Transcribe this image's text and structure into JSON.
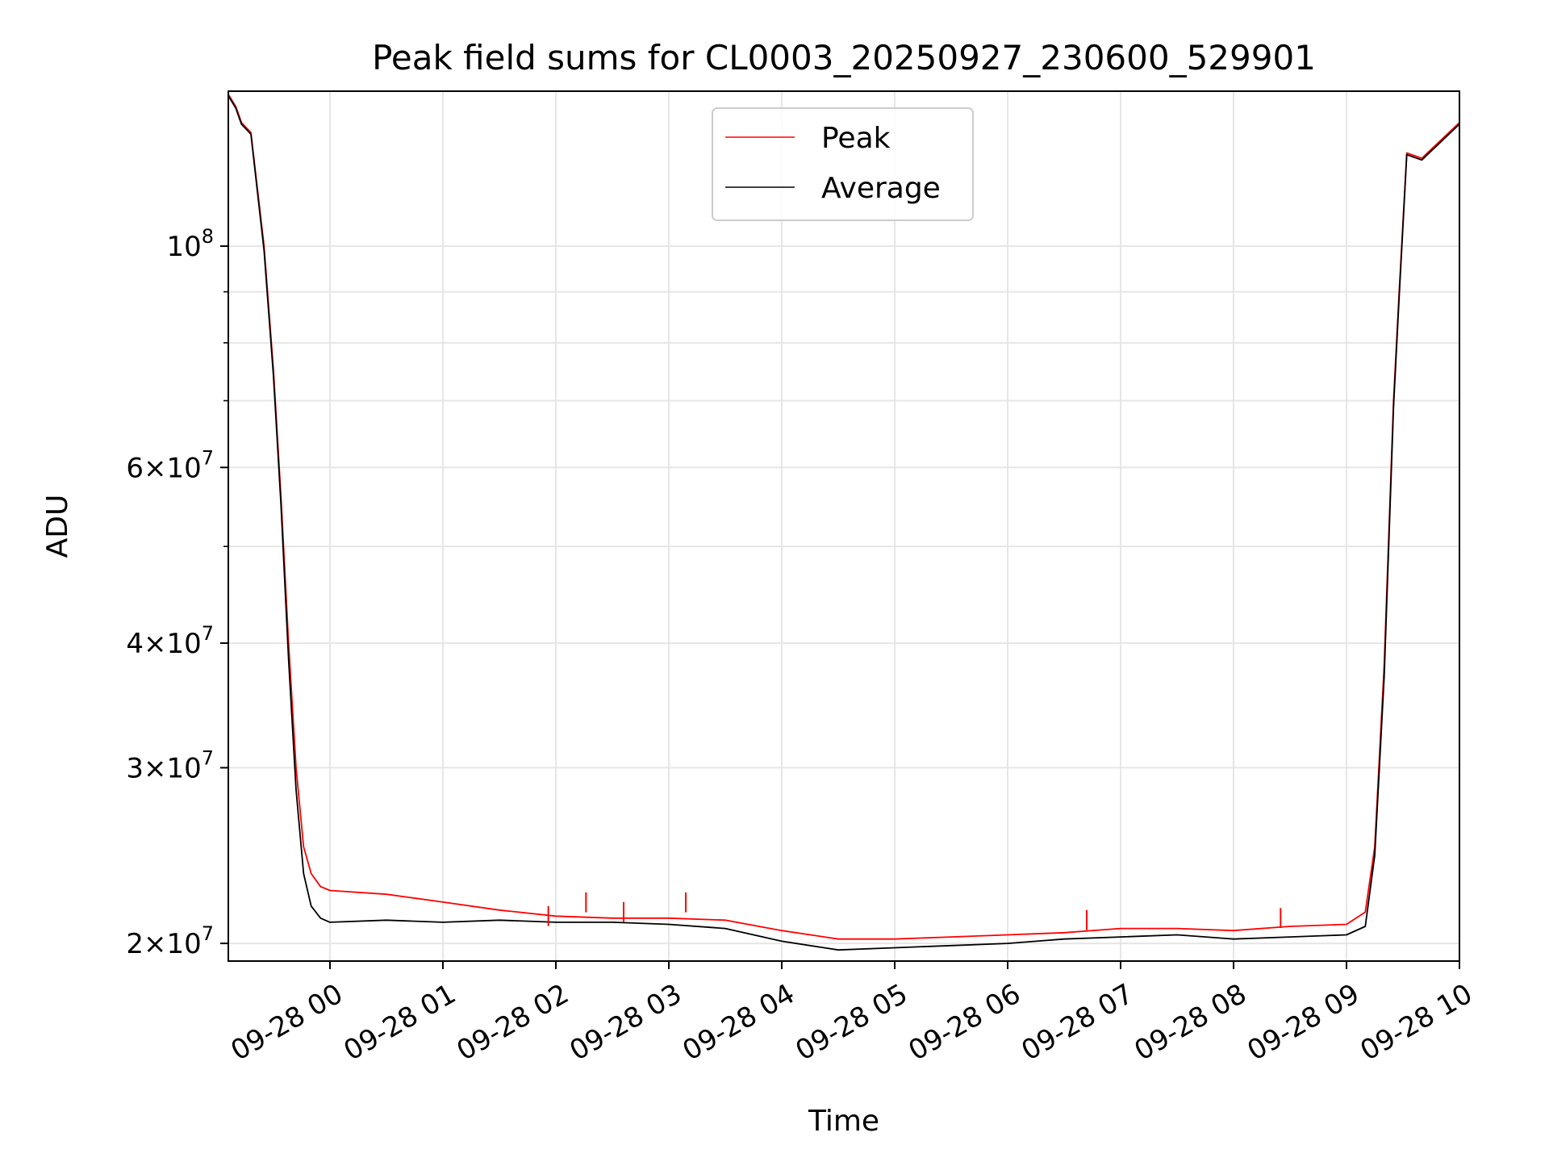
{
  "chart_data": {
    "type": "line",
    "title": "Peak field sums for CL0003_20250927_230600_529901",
    "xlabel": "Time",
    "ylabel": "ADU",
    "x_scale": "time",
    "y_scale": "log",
    "xlim": [
      "2025-09-27 23:06",
      "2025-09-28 10:00"
    ],
    "ylim": [
      19200000,
      143000000
    ],
    "x_ticks": [
      {
        "t": "2025-09-28 00:00",
        "label": "09-28 00"
      },
      {
        "t": "2025-09-28 01:00",
        "label": "09-28 01"
      },
      {
        "t": "2025-09-28 02:00",
        "label": "09-28 02"
      },
      {
        "t": "2025-09-28 03:00",
        "label": "09-28 03"
      },
      {
        "t": "2025-09-28 04:00",
        "label": "09-28 04"
      },
      {
        "t": "2025-09-28 05:00",
        "label": "09-28 05"
      },
      {
        "t": "2025-09-28 06:00",
        "label": "09-28 06"
      },
      {
        "t": "2025-09-28 07:00",
        "label": "09-28 07"
      },
      {
        "t": "2025-09-28 08:00",
        "label": "09-28 08"
      },
      {
        "t": "2025-09-28 09:00",
        "label": "09-28 09"
      },
      {
        "t": "2025-09-28 10:00",
        "label": "09-28 10"
      }
    ],
    "y_major_ticks": [
      {
        "v": 20000000,
        "mant": "2",
        "exp": "7"
      },
      {
        "v": 30000000,
        "mant": "3",
        "exp": "7"
      },
      {
        "v": 40000000,
        "mant": "4",
        "exp": "7"
      },
      {
        "v": 60000000,
        "mant": "6",
        "exp": "7"
      },
      {
        "v": 100000000,
        "mant": "",
        "exp": "8"
      }
    ],
    "y_minor_ticks": [
      50000000,
      70000000,
      80000000,
      90000000
    ],
    "grid": true,
    "legend_position": "top-center",
    "series": [
      {
        "name": "Peak",
        "color": "#ff0000",
        "points": [
          [
            "2025-09-27 23:06",
            142000000
          ],
          [
            "2025-09-27 23:10",
            138000000
          ],
          [
            "2025-09-27 23:13",
            133000000
          ],
          [
            "2025-09-27 23:18",
            130000000
          ],
          [
            "2025-09-27 23:25",
            100000000
          ],
          [
            "2025-09-27 23:30",
            75000000
          ],
          [
            "2025-09-27 23:34",
            56000000
          ],
          [
            "2025-09-27 23:38",
            40000000
          ],
          [
            "2025-09-27 23:42",
            30000000
          ],
          [
            "2025-09-27 23:46",
            25000000
          ],
          [
            "2025-09-27 23:50",
            23500000
          ],
          [
            "2025-09-27 23:55",
            22800000
          ],
          [
            "2025-09-28 00:00",
            22600000
          ],
          [
            "2025-09-28 00:30",
            22400000
          ],
          [
            "2025-09-28 01:00",
            22000000
          ],
          [
            "2025-09-28 01:30",
            21600000
          ],
          [
            "2025-09-28 02:00",
            21300000
          ],
          [
            "2025-09-28 02:30",
            21200000
          ],
          [
            "2025-09-28 03:00",
            21200000
          ],
          [
            "2025-09-28 03:30",
            21100000
          ],
          [
            "2025-09-28 04:00",
            20600000
          ],
          [
            "2025-09-28 04:30",
            20200000
          ],
          [
            "2025-09-28 05:00",
            20200000
          ],
          [
            "2025-09-28 05:30",
            20300000
          ],
          [
            "2025-09-28 06:00",
            20400000
          ],
          [
            "2025-09-28 06:30",
            20500000
          ],
          [
            "2025-09-28 07:00",
            20700000
          ],
          [
            "2025-09-28 07:30",
            20700000
          ],
          [
            "2025-09-28 08:00",
            20600000
          ],
          [
            "2025-09-28 08:30",
            20800000
          ],
          [
            "2025-09-28 09:00",
            20900000
          ],
          [
            "2025-09-28 09:10",
            21500000
          ],
          [
            "2025-09-28 09:15",
            25000000
          ],
          [
            "2025-09-28 09:20",
            38000000
          ],
          [
            "2025-09-28 09:25",
            70000000
          ],
          [
            "2025-09-28 09:28",
            90000000
          ],
          [
            "2025-09-28 09:32",
            124000000
          ],
          [
            "2025-09-28 09:40",
            122500000
          ],
          [
            "2025-09-28 10:00",
            133000000
          ]
        ]
      },
      {
        "name": "Average",
        "color": "#000000",
        "points": [
          [
            "2025-09-27 23:06",
            141500000
          ],
          [
            "2025-09-27 23:10",
            137500000
          ],
          [
            "2025-09-27 23:13",
            132500000
          ],
          [
            "2025-09-27 23:18",
            129500000
          ],
          [
            "2025-09-27 23:25",
            99000000
          ],
          [
            "2025-09-27 23:30",
            74000000
          ],
          [
            "2025-09-27 23:34",
            55000000
          ],
          [
            "2025-09-27 23:38",
            38500000
          ],
          [
            "2025-09-27 23:42",
            28500000
          ],
          [
            "2025-09-27 23:46",
            23500000
          ],
          [
            "2025-09-27 23:50",
            21800000
          ],
          [
            "2025-09-27 23:55",
            21200000
          ],
          [
            "2025-09-28 00:00",
            21000000
          ],
          [
            "2025-09-28 00:30",
            21100000
          ],
          [
            "2025-09-28 01:00",
            21000000
          ],
          [
            "2025-09-28 01:30",
            21100000
          ],
          [
            "2025-09-28 02:00",
            21000000
          ],
          [
            "2025-09-28 02:30",
            21000000
          ],
          [
            "2025-09-28 03:00",
            20900000
          ],
          [
            "2025-09-28 03:30",
            20700000
          ],
          [
            "2025-09-28 04:00",
            20100000
          ],
          [
            "2025-09-28 04:30",
            19700000
          ],
          [
            "2025-09-28 05:00",
            19800000
          ],
          [
            "2025-09-28 05:30",
            19900000
          ],
          [
            "2025-09-28 06:00",
            20000000
          ],
          [
            "2025-09-28 06:30",
            20200000
          ],
          [
            "2025-09-28 07:00",
            20300000
          ],
          [
            "2025-09-28 07:30",
            20400000
          ],
          [
            "2025-09-28 08:00",
            20200000
          ],
          [
            "2025-09-28 08:30",
            20300000
          ],
          [
            "2025-09-28 09:00",
            20400000
          ],
          [
            "2025-09-28 09:10",
            20800000
          ],
          [
            "2025-09-28 09:15",
            24500000
          ],
          [
            "2025-09-28 09:20",
            37000000
          ],
          [
            "2025-09-28 09:25",
            69000000
          ],
          [
            "2025-09-28 09:28",
            89000000
          ],
          [
            "2025-09-28 09:32",
            123500000
          ],
          [
            "2025-09-28 09:40",
            122000000
          ],
          [
            "2025-09-28 10:00",
            132500000
          ]
        ]
      }
    ],
    "annotations_peak_spikes": [
      [
        "2025-09-28 01:56",
        21800000
      ],
      [
        "2025-09-28 02:16",
        22500000
      ],
      [
        "2025-09-28 02:36",
        22000000
      ],
      [
        "2025-09-28 03:09",
        22500000
      ],
      [
        "2025-09-28 06:42",
        21600000
      ],
      [
        "2025-09-28 08:25",
        21700000
      ]
    ]
  }
}
